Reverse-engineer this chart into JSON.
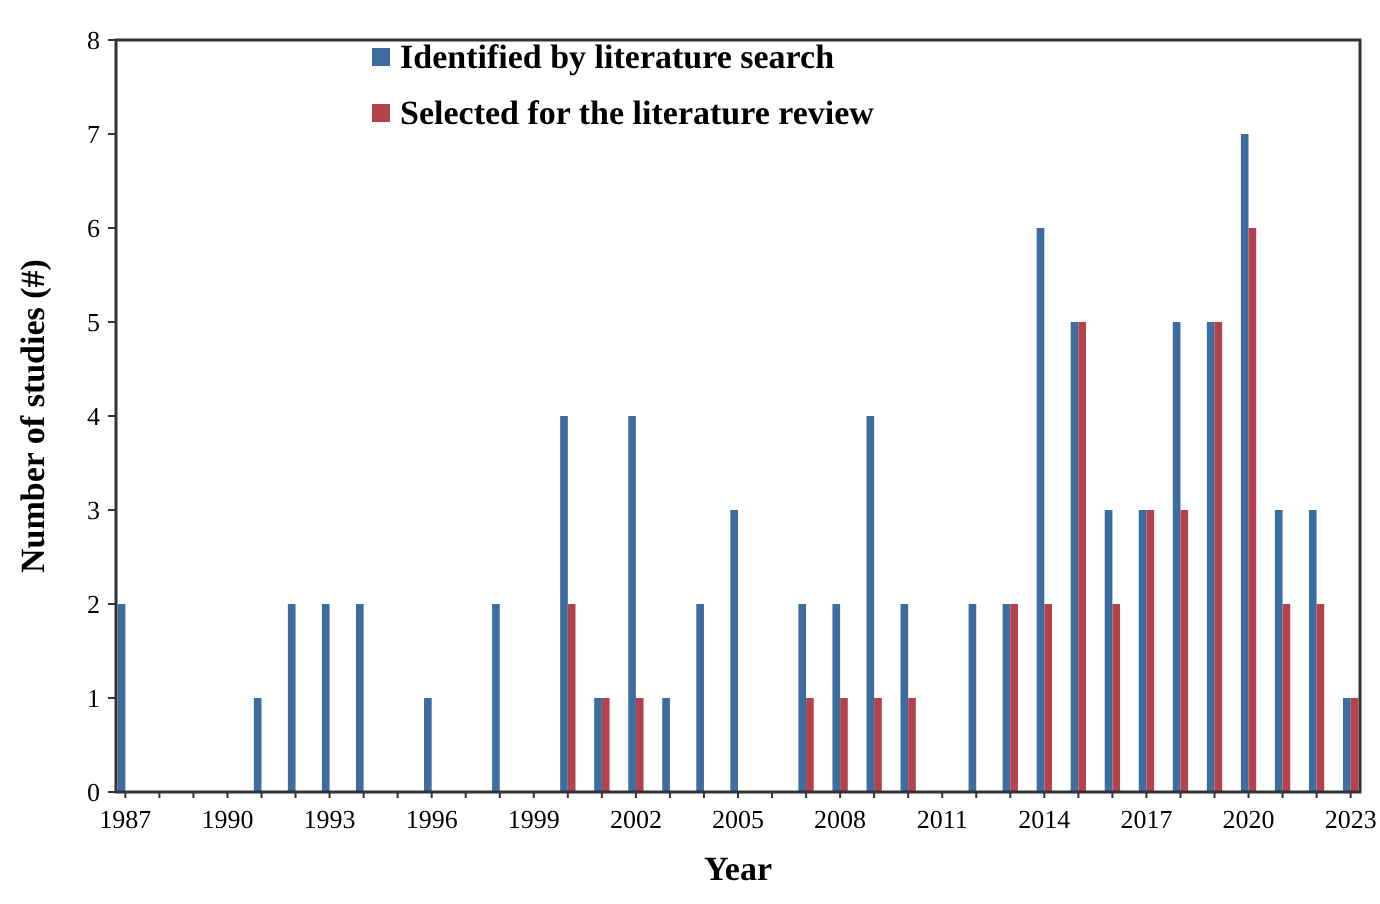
{
  "chart_data": {
    "type": "bar",
    "xlabel": "Year",
    "ylabel": "Number of studies (#)",
    "categories": [
      "1987",
      null,
      null,
      "1990",
      null,
      null,
      "1993",
      null,
      null,
      "1996",
      null,
      null,
      "1999",
      null,
      null,
      "2002",
      null,
      null,
      "2005",
      null,
      null,
      "2008",
      null,
      null,
      "2011",
      null,
      null,
      "2014",
      null,
      null,
      "2017",
      null,
      null,
      "2020",
      null,
      null,
      "2023"
    ],
    "series": [
      {
        "name": "Identified by literature search",
        "color": "#3b6e9e",
        "values": [
          2,
          0,
          0,
          0,
          1,
          2,
          2,
          2,
          0,
          1,
          0,
          2,
          0,
          4,
          1,
          4,
          1,
          2,
          3,
          0,
          2,
          2,
          4,
          2,
          0,
          2,
          2,
          6,
          5,
          3,
          3,
          5,
          5,
          7,
          3,
          3,
          1
        ]
      },
      {
        "name": "Selected for the literature review",
        "color": "#b4424c",
        "values": [
          0,
          0,
          0,
          0,
          0,
          0,
          0,
          0,
          0,
          0,
          0,
          0,
          0,
          2,
          1,
          1,
          0,
          0,
          0,
          0,
          1,
          1,
          1,
          1,
          0,
          0,
          2,
          2,
          5,
          2,
          3,
          3,
          5,
          6,
          2,
          2,
          1
        ]
      }
    ],
    "ylim": [
      0,
      8
    ],
    "yticks": [
      0,
      1,
      2,
      3,
      4,
      5,
      6,
      7,
      8
    ],
    "grid": false,
    "legend": "top"
  }
}
